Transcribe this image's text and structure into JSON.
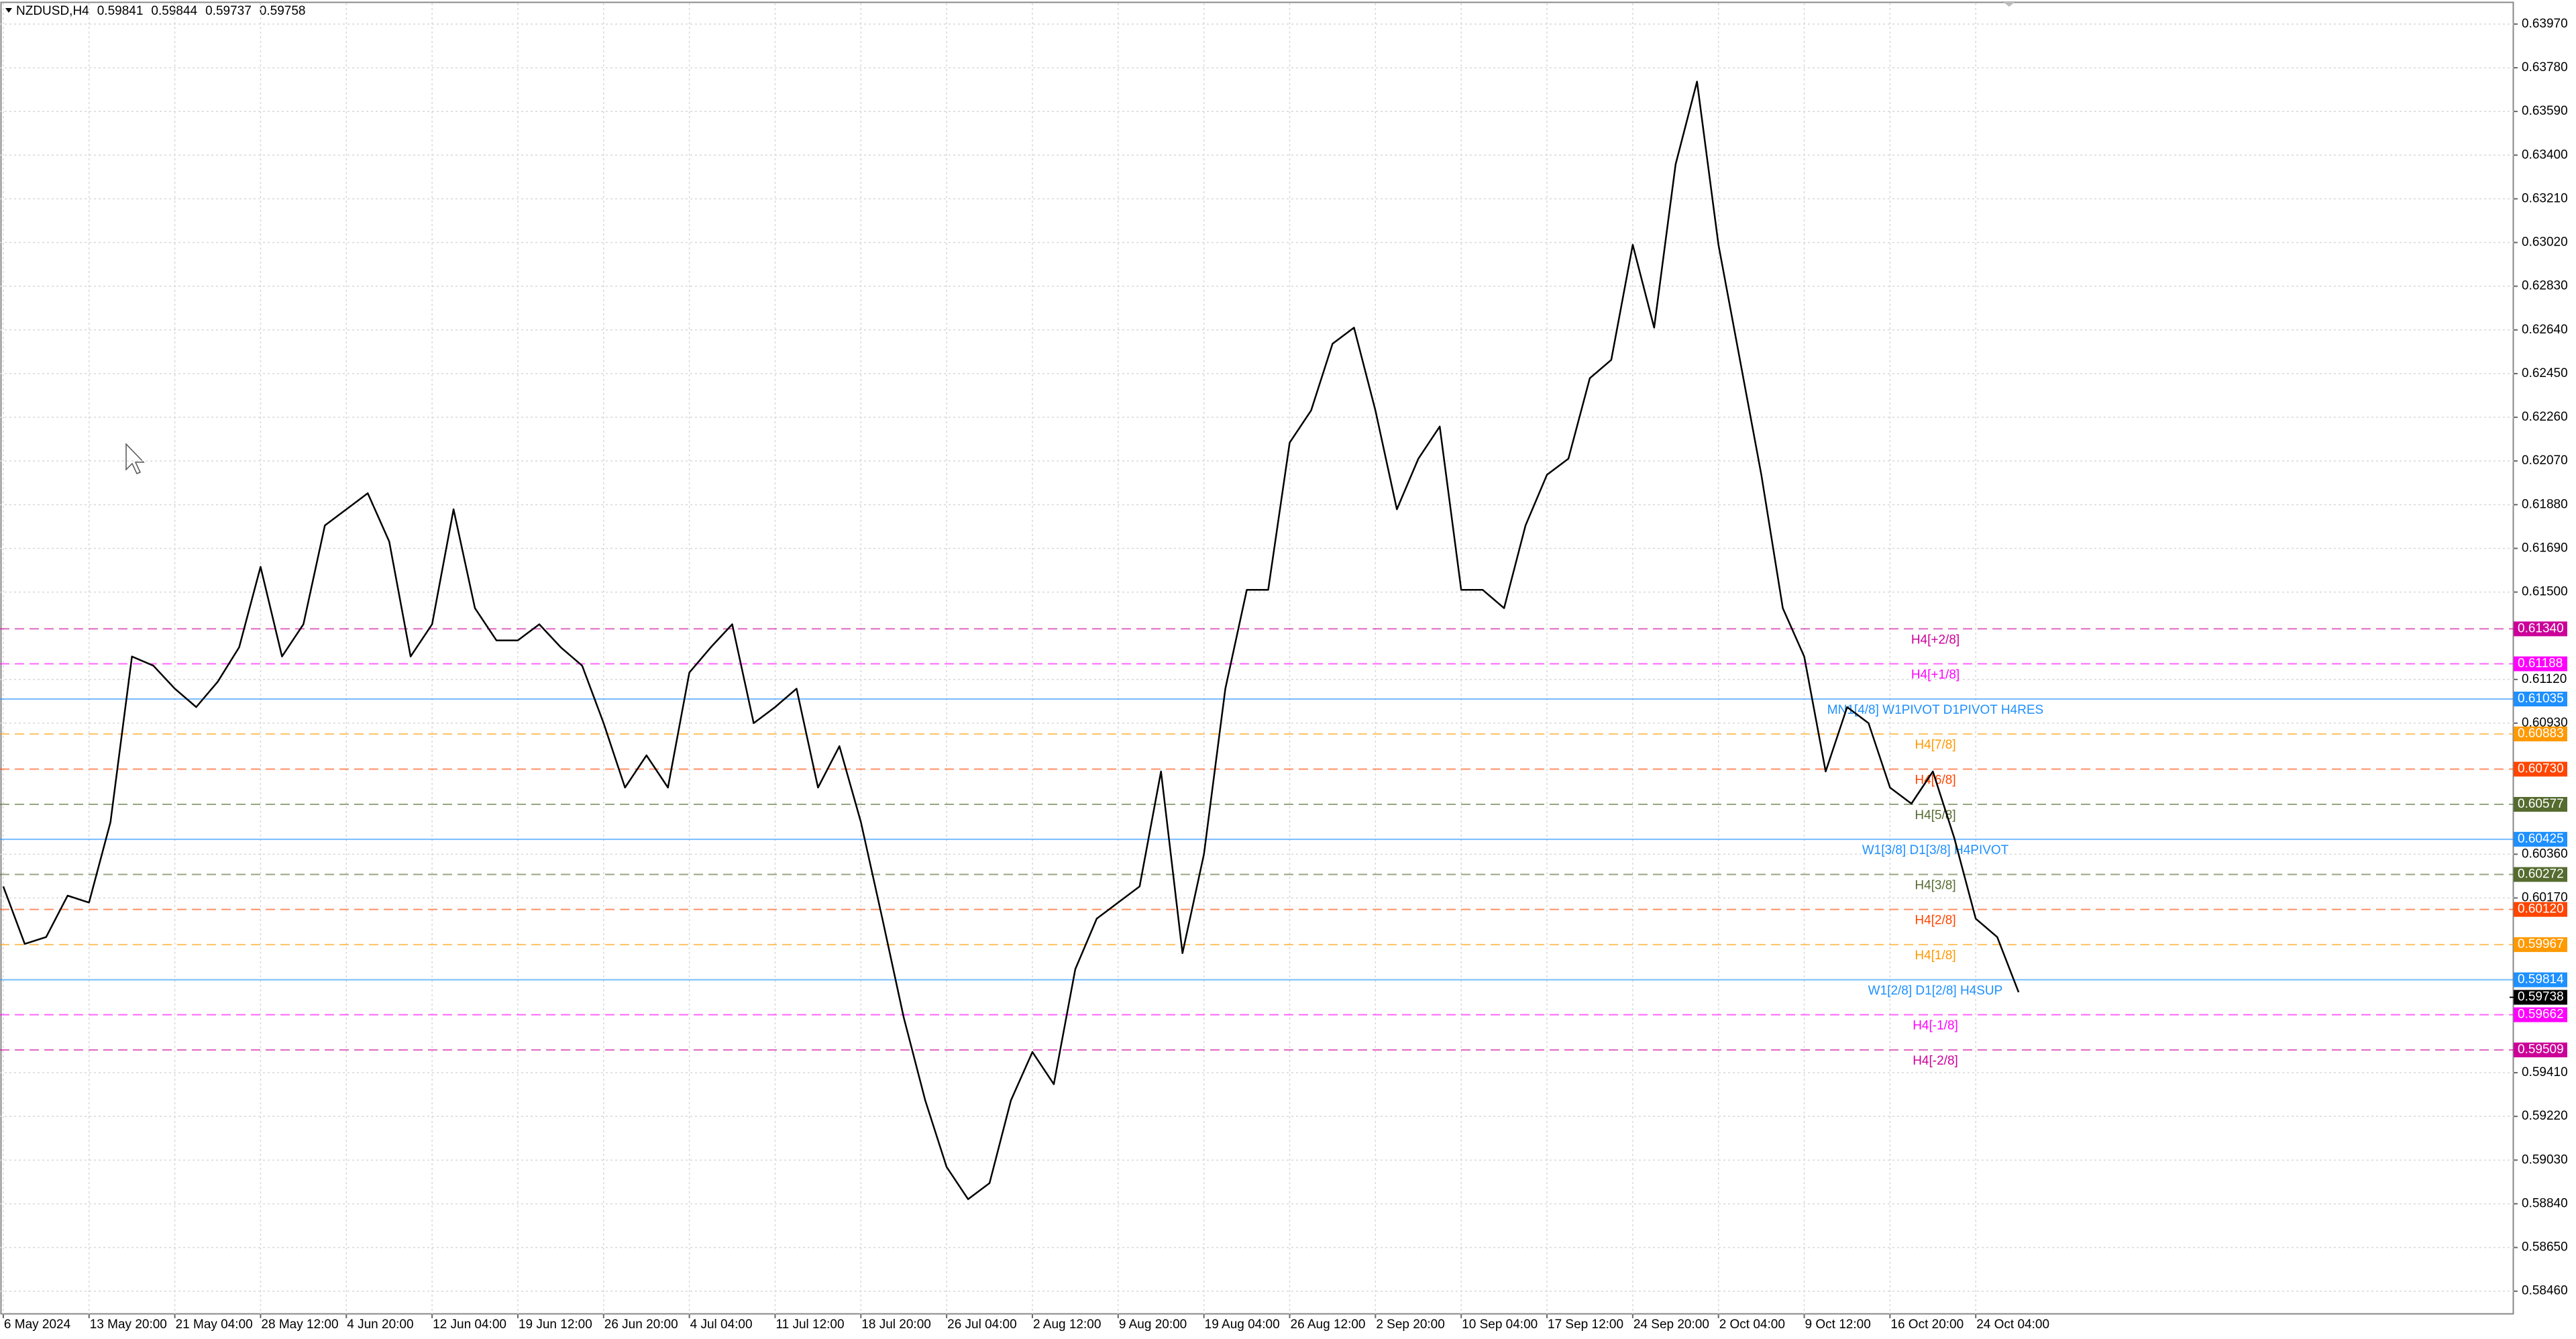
{
  "chart_data": {
    "type": "line",
    "title": "NZDUSD,H4",
    "header_values": [
      0.59841,
      0.59844,
      0.59737,
      0.59758
    ],
    "categories": [
      "6 May 2024",
      null,
      null,
      null,
      "13 May 20:00",
      null,
      null,
      null,
      "21 May 04:00",
      null,
      null,
      null,
      "28 May 12:00",
      null,
      null,
      null,
      "4 Jun 20:00",
      null,
      null,
      null,
      "12 Jun 04:00",
      null,
      null,
      null,
      "19 Jun 12:00",
      null,
      null,
      null,
      "26 Jun 20:00",
      null,
      null,
      null,
      "4 Jul 04:00",
      null,
      null,
      null,
      "11 Jul 12:00",
      null,
      null,
      null,
      "18 Jul 20:00",
      null,
      null,
      null,
      "26 Jul 04:00",
      null,
      null,
      null,
      "2 Aug 12:00",
      null,
      null,
      null,
      "9 Aug 20:00",
      null,
      null,
      null,
      "19 Aug 04:00",
      null,
      null,
      null,
      "26 Aug 12:00",
      null,
      null,
      null,
      "2 Sep 20:00",
      null,
      null,
      null,
      "10 Sep 04:00",
      null,
      null,
      null,
      "17 Sep 12:00",
      null,
      null,
      null,
      "24 Sep 20:00",
      null,
      null,
      null,
      "2 Oct 04:00",
      null,
      null,
      null,
      "9 Oct 12:00",
      null,
      null,
      null,
      "16 Oct 20:00",
      null,
      null,
      null,
      "24 Oct 04:00",
      null,
      null
    ],
    "series": [
      {
        "color": "#000000",
        "values": [
          0.6022,
          0.5997,
          0.6,
          0.6018,
          0.6015,
          0.605,
          0.6122,
          0.6118,
          0.6108,
          0.61,
          0.6111,
          0.6126,
          0.6161,
          0.6122,
          0.6136,
          0.6179,
          0.6186,
          0.6193,
          0.6172,
          0.6122,
          0.6136,
          0.6186,
          0.6143,
          0.6129,
          0.6129,
          0.6136,
          0.6126,
          0.6118,
          0.6093,
          0.6065,
          0.6079,
          0.6065,
          0.6115,
          0.6126,
          0.6136,
          0.6093,
          0.61,
          0.6108,
          0.6065,
          0.6083,
          0.605,
          0.6008,
          0.5965,
          0.5929,
          0.59,
          0.5886,
          0.5893,
          0.5929,
          0.595,
          0.5936,
          0.5986,
          0.6008,
          0.6015,
          0.6022,
          0.6072,
          0.5993,
          0.6036,
          0.6108,
          0.6151,
          0.6151,
          0.6215,
          0.6229,
          0.6258,
          0.6265,
          0.6229,
          0.6186,
          0.6208,
          0.6222,
          0.6151,
          0.6151,
          0.6143,
          0.6179,
          0.6201,
          0.6208,
          0.6243,
          0.6251,
          0.6301,
          0.6265,
          0.6336,
          0.6372,
          0.6301,
          0.6251,
          0.6201,
          0.6143,
          0.6122,
          0.6072,
          0.61,
          0.6093,
          0.6065,
          0.6058,
          0.6072,
          0.6043,
          0.6008,
          0.6,
          0.5976
        ]
      }
    ],
    "ylim": [
      0.5836,
      0.6406
    ],
    "yticks": [
      {
        "value": 0.6397,
        "label": "0.63970"
      },
      {
        "value": 0.6378,
        "label": "0.63780"
      },
      {
        "value": 0.6359,
        "label": "0.63590"
      },
      {
        "value": 0.634,
        "label": "0.63400"
      },
      {
        "value": 0.6321,
        "label": "0.63210"
      },
      {
        "value": 0.6302,
        "label": "0.63020"
      },
      {
        "value": 0.6283,
        "label": "0.62830"
      },
      {
        "value": 0.6264,
        "label": "0.62640"
      },
      {
        "value": 0.6245,
        "label": "0.62450"
      },
      {
        "value": 0.6226,
        "label": "0.62260"
      },
      {
        "value": 0.6207,
        "label": "0.62070"
      },
      {
        "value": 0.6188,
        "label": "0.61880"
      },
      {
        "value": 0.6169,
        "label": "0.61690"
      },
      {
        "value": 0.615,
        "label": "0.61500"
      },
      {
        "value": 0.6112,
        "label": "0.61120"
      },
      {
        "value": 0.6093,
        "label": "0.60930"
      },
      {
        "value": 0.6036,
        "label": "0.60360"
      },
      {
        "value": 0.6017,
        "label": "0.60170"
      },
      {
        "value": 0.5941,
        "label": "0.59410"
      },
      {
        "value": 0.5922,
        "label": "0.59220"
      },
      {
        "value": 0.5903,
        "label": "0.59030"
      },
      {
        "value": 0.5884,
        "label": "0.58840"
      },
      {
        "value": 0.5865,
        "label": "0.58650"
      },
      {
        "value": 0.5846,
        "label": "0.58460"
      }
    ],
    "grid": true,
    "levels": {
      "names": [
        "H4[+2/8]",
        "H4[+1/8]",
        "MN1[4/8] W1PIVOT D1PIVOT H4RES",
        "H4[7/8]",
        "H4[6/8]",
        "H4[5/8]",
        "W1[3/8] D1[3/8] H4PIVOT",
        "H4[3/8]",
        "H4[2/8]",
        "H4[1/8]",
        "W1[2/8] D1[2/8] H4SUP",
        "H4[-1/8]",
        "H4[-2/8]"
      ],
      "values": [
        0.6134,
        0.61188,
        0.61035,
        0.60883,
        0.6073,
        0.60577,
        0.60425,
        0.60272,
        0.6012,
        0.59967,
        0.59814,
        0.59662,
        0.59509
      ],
      "value_labels": [
        "0.61340",
        "0.61188",
        "0.61035",
        "0.60883",
        "0.60730",
        "0.60577",
        "0.60425",
        "0.60272",
        "0.60120",
        "0.59967",
        "0.59814",
        "0.59662",
        "0.59509"
      ],
      "colors": [
        "#cc0099",
        "#ff00ff",
        "#1e90ff",
        "#ff9900",
        "#ff4500",
        "#556b2f",
        "#1e90ff",
        "#556b2f",
        "#ff4500",
        "#ff9900",
        "#1e90ff",
        "#ff00ff",
        "#cc0099"
      ],
      "dashed": [
        true,
        true,
        false,
        true,
        true,
        true,
        false,
        true,
        true,
        true,
        false,
        true,
        true
      ]
    },
    "current_price": {
      "value": 0.59738,
      "label": "0.59738"
    }
  }
}
